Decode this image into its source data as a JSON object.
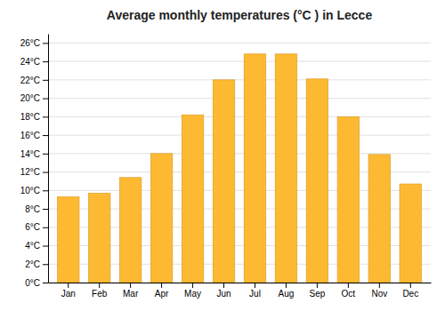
{
  "chart_data": {
    "type": "bar",
    "title": "Average monthly temperatures (°C ) in Lecce",
    "categories": [
      "Jan",
      "Feb",
      "Mar",
      "Apr",
      "May",
      "Jun",
      "Jul",
      "Aug",
      "Sep",
      "Oct",
      "Nov",
      "Dec"
    ],
    "values": [
      9.3,
      9.7,
      11.4,
      14.0,
      18.2,
      22.0,
      24.8,
      24.8,
      22.1,
      18.0,
      13.9,
      10.7
    ],
    "color": "#FDB931",
    "ylim": [
      0,
      27
    ],
    "yticks": [
      {
        "value": 0,
        "label": "0°C"
      },
      {
        "value": 2,
        "label": "2°C"
      },
      {
        "value": 4,
        "label": "4°C"
      },
      {
        "value": 6,
        "label": "6°C"
      },
      {
        "value": 8,
        "label": "8°C"
      },
      {
        "value": 10,
        "label": "10°C"
      },
      {
        "value": 12,
        "label": "12°C"
      },
      {
        "value": 14,
        "label": "14°C"
      },
      {
        "value": 16,
        "label": "16°C"
      },
      {
        "value": 18,
        "label": "18°C"
      },
      {
        "value": 20,
        "label": "20°C"
      },
      {
        "value": 22,
        "label": "22°C"
      },
      {
        "value": 24,
        "label": "24°C"
      },
      {
        "value": 26,
        "label": "26°C"
      }
    ],
    "grid": true
  }
}
